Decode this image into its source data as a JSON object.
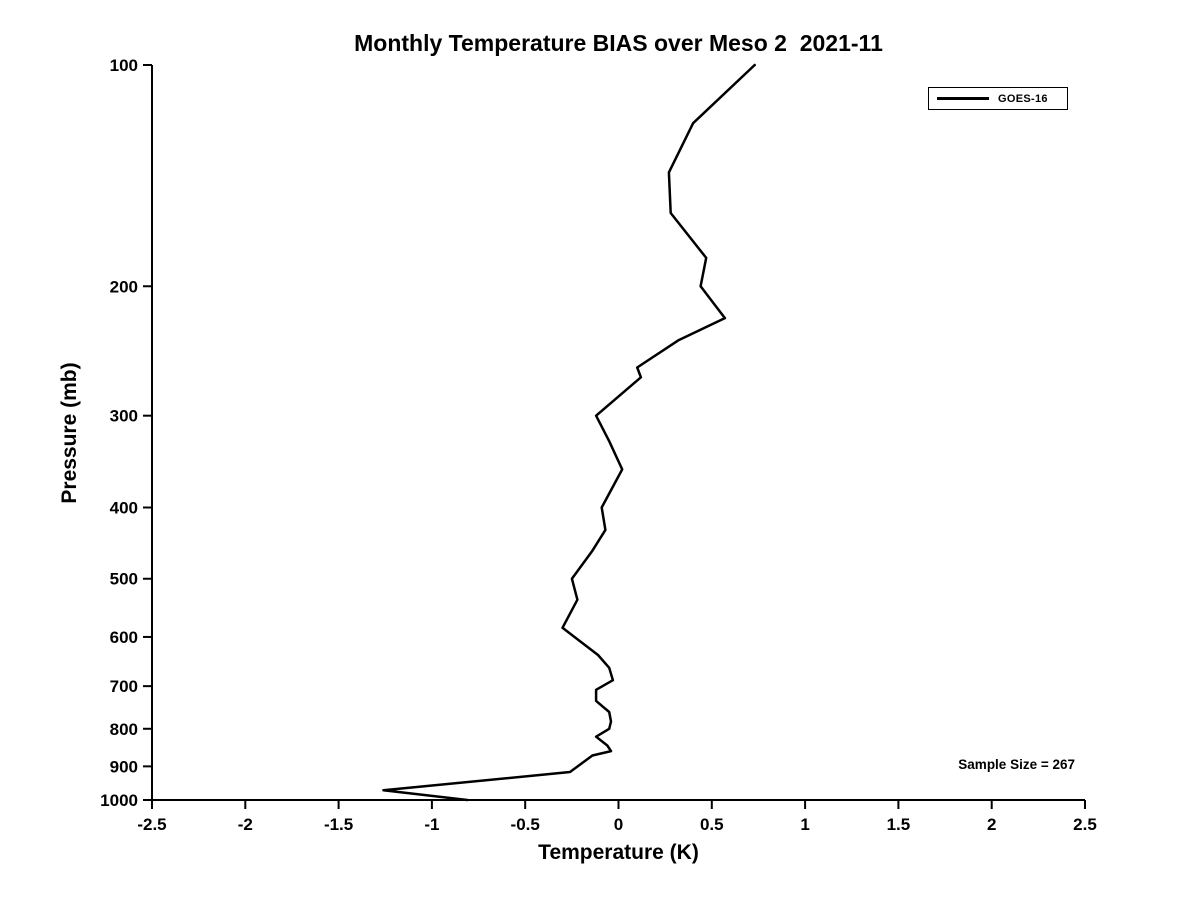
{
  "figure": {
    "background": "#ffffff",
    "foreground": "#000000"
  },
  "chart_data": {
    "type": "line",
    "title": "Monthly Temperature BIAS over Meso 2  2021-11",
    "xlabel": "Temperature (K)",
    "ylabel": "Pressure (mb)",
    "xlim": [
      -2.5,
      2.5
    ],
    "ylim": [
      100,
      1000
    ],
    "y_scale": "log",
    "y_axis_reversed": true,
    "grid": false,
    "x_ticks": [
      -2.5,
      -2,
      -1.5,
      -1,
      -0.5,
      0,
      0.5,
      1,
      1.5,
      2,
      2.5
    ],
    "x_tick_labels": [
      "-2.5",
      "-2",
      "-1.5",
      "-1",
      "-0.5",
      "0",
      "0.5",
      "1",
      "1.5",
      "2",
      "2.5"
    ],
    "y_ticks": [
      100,
      200,
      300,
      400,
      500,
      600,
      700,
      800,
      900,
      1000
    ],
    "y_tick_labels": [
      "100",
      "200",
      "300",
      "400",
      "500",
      "600",
      "700",
      "800",
      "900",
      "1000"
    ],
    "legend_position": "top-right",
    "series": [
      {
        "name": "GOES-16",
        "color": "#000000",
        "line_width": 2.5,
        "points_format": "[pressure_mb, temperature_bias_k]",
        "points": [
          [
            100,
            0.73
          ],
          [
            120,
            0.4
          ],
          [
            140,
            0.27
          ],
          [
            159,
            0.28
          ],
          [
            183,
            0.47
          ],
          [
            200,
            0.44
          ],
          [
            221,
            0.57
          ],
          [
            237,
            0.32
          ],
          [
            258,
            0.1
          ],
          [
            266,
            0.12
          ],
          [
            300,
            -0.12
          ],
          [
            325,
            -0.05
          ],
          [
            355,
            0.02
          ],
          [
            400,
            -0.09
          ],
          [
            429,
            -0.07
          ],
          [
            458,
            -0.14
          ],
          [
            500,
            -0.25
          ],
          [
            534,
            -0.22
          ],
          [
            583,
            -0.3
          ],
          [
            635,
            -0.11
          ],
          [
            661,
            -0.05
          ],
          [
            687,
            -0.03
          ],
          [
            708,
            -0.12
          ],
          [
            733,
            -0.12
          ],
          [
            759,
            -0.05
          ],
          [
            782,
            -0.04
          ],
          [
            800,
            -0.05
          ],
          [
            820,
            -0.12
          ],
          [
            843,
            -0.06
          ],
          [
            858,
            -0.04
          ],
          [
            870,
            -0.14
          ],
          [
            916,
            -0.26
          ],
          [
            970,
            -1.26
          ],
          [
            1000,
            -0.81
          ]
        ]
      }
    ],
    "annotations": [
      {
        "text": "Sample Size = 267",
        "position": "bottom-right"
      }
    ]
  }
}
